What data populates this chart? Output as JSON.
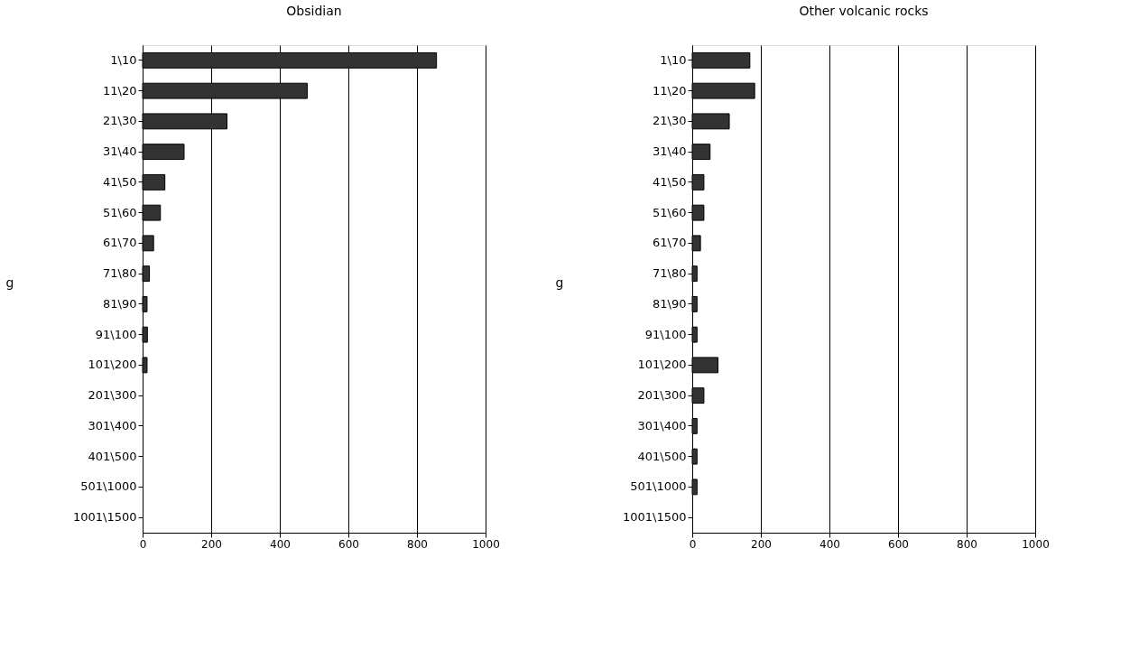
{
  "chart_data": [
    {
      "type": "bar",
      "orientation": "horizontal",
      "title": "Obsidian",
      "ylabel": "g",
      "categories": [
        "1\\10",
        "11\\20",
        "21\\30",
        "31\\40",
        "41\\50",
        "51\\60",
        "61\\70",
        "71\\80",
        "81\\90",
        "91\\100",
        "101\\200",
        "201\\300",
        "301\\400",
        "401\\500",
        "501\\1000",
        "1001\\1500"
      ],
      "values": [
        857,
        480,
        246,
        121,
        65,
        52,
        32,
        20,
        13,
        14,
        13,
        0,
        0,
        0,
        0,
        0
      ],
      "color": "#333333",
      "xlim": [
        0,
        1000
      ],
      "xticks": [
        0,
        200,
        400,
        600,
        800,
        1000
      ],
      "grid": "x"
    },
    {
      "type": "bar",
      "orientation": "horizontal",
      "title": "Other volcanic rocks",
      "ylabel": "g",
      "categories": [
        "1\\10",
        "11\\20",
        "21\\30",
        "31\\40",
        "41\\50",
        "51\\60",
        "61\\70",
        "71\\80",
        "81\\90",
        "91\\100",
        "101\\200",
        "201\\300",
        "301\\400",
        "401\\500",
        "501\\1000",
        "1001\\1500"
      ],
      "values": [
        168,
        182,
        108,
        52,
        34,
        34,
        24,
        14,
        14,
        14,
        75,
        34,
        14,
        14,
        14,
        0
      ],
      "color": "#333333",
      "xlim": [
        0,
        1000
      ],
      "xticks": [
        0,
        200,
        400,
        600,
        800,
        1000
      ],
      "grid": "x"
    }
  ]
}
